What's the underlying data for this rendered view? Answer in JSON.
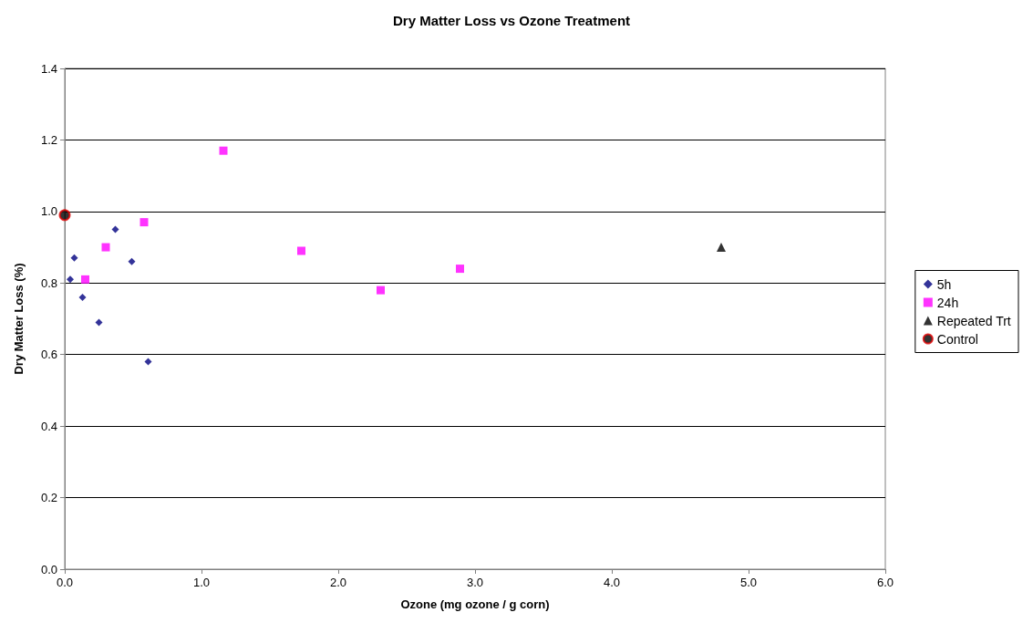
{
  "chart_data": {
    "type": "scatter",
    "title": "Dry Matter Loss vs Ozone Treatment",
    "xlabel": "Ozone (mg ozone / g corn)",
    "ylabel": "Dry Matter Loss (%)",
    "xlim": [
      0,
      6
    ],
    "xticks": [
      {
        "value": 0,
        "label": "0.0"
      },
      {
        "value": 1,
        "label": "1.0"
      },
      {
        "value": 2,
        "label": "2.0"
      },
      {
        "value": 3,
        "label": "3.0"
      },
      {
        "value": 4,
        "label": "4.0"
      },
      {
        "value": 5,
        "label": "5.0"
      },
      {
        "value": 6,
        "label": "6.0"
      }
    ],
    "ylim": [
      0,
      1.4
    ],
    "yticks": [
      {
        "value": 0,
        "label": "0.0"
      },
      {
        "value": 0.2,
        "label": "0.2"
      },
      {
        "value": 0.4,
        "label": "0.4"
      },
      {
        "value": 0.6,
        "label": "0.6"
      },
      {
        "value": 0.8,
        "label": "0.8"
      },
      {
        "value": 1,
        "label": "1.0"
      },
      {
        "value": 1.2,
        "label": "1.2"
      },
      {
        "value": 1.4,
        "label": "1.4"
      }
    ],
    "grid": "y",
    "legend": "right",
    "series": [
      {
        "name": "5h",
        "color": "#000080",
        "marker": "diamond",
        "x": [
          0.04,
          0.07,
          0.13,
          0.25,
          0.37,
          0.49,
          0.61
        ],
        "values": [
          0.81,
          0.87,
          0.76,
          0.69,
          0.95,
          0.86,
          0.58
        ]
      },
      {
        "name": "24h",
        "color": "#ff00ff",
        "marker": "square",
        "x": [
          0.15,
          0.3,
          0.58,
          1.16,
          1.73,
          2.31,
          2.89
        ],
        "values": [
          0.81,
          0.9,
          0.97,
          1.17,
          0.89,
          0.78,
          0.84
        ]
      },
      {
        "name": "Repeated Trt",
        "color": "#000000",
        "marker": "triangle",
        "x": [
          4.8
        ],
        "values": [
          0.9
        ]
      },
      {
        "name": "Control",
        "color": "#000000",
        "marker": "circle",
        "x": [
          0
        ],
        "values": [
          0.99
        ]
      }
    ]
  }
}
